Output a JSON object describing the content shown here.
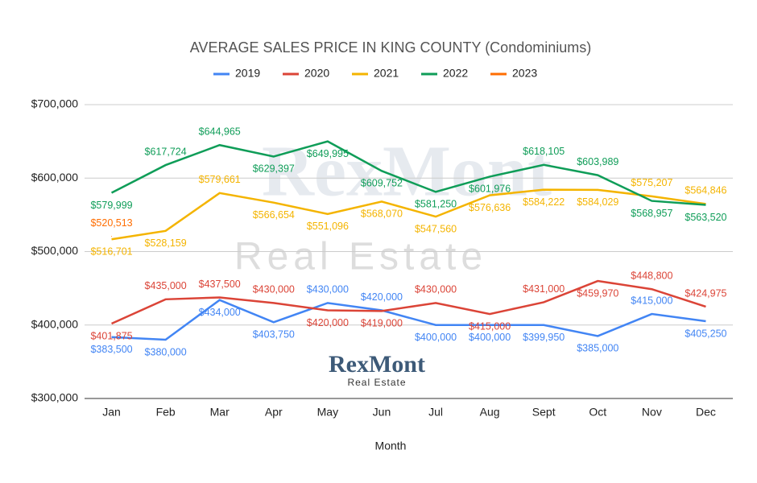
{
  "chart_data": {
    "type": "line",
    "title": "AVERAGE SALES PRICE IN KING COUNTY (Condominiums)",
    "x_label": "Month",
    "watermark": {
      "title": "RexMont",
      "subtitle": "Real Estate"
    },
    "logo": {
      "title": "RexMont",
      "subtitle": "Real Estate"
    },
    "categories": [
      "Jan",
      "Feb",
      "Mar",
      "Apr",
      "May",
      "Jun",
      "Jul",
      "Aug",
      "Sept",
      "Oct",
      "Nov",
      "Dec"
    ],
    "ylim": [
      300000,
      700000
    ],
    "yticks": [
      {
        "value": 300000,
        "label": "$300,000"
      },
      {
        "value": 400000,
        "label": "$400,000"
      },
      {
        "value": 500000,
        "label": "$500,000"
      },
      {
        "value": 600000,
        "label": "$600,000"
      },
      {
        "value": 700000,
        "label": "$700,000"
      }
    ],
    "grid": true,
    "legend": "top",
    "series": [
      {
        "name": "2019",
        "color": "#4285f4",
        "values": [
          383500,
          380000,
          434000,
          403750,
          430000,
          420000,
          400000,
          400000,
          399950,
          385000,
          415000,
          405250
        ],
        "value_labels": [
          "$383,500",
          "$380,000",
          "$434,000",
          "$403,750",
          "$430,000",
          "$420,000",
          "$400,000",
          "$400,000",
          "$399,950",
          "$385,000",
          "$415,000",
          "$405,250"
        ]
      },
      {
        "name": "2020",
        "color": "#db4437",
        "values": [
          401875,
          435000,
          437500,
          430000,
          420000,
          419000,
          430000,
          415000,
          431000,
          459970,
          448800,
          424975
        ],
        "value_labels": [
          "$401,875",
          "$435,000",
          "$437,500",
          "$430,000",
          "$420,000",
          "$419,000",
          "$430,000",
          "$415,000",
          "$431,000",
          "$459,970",
          "$448,800",
          "$424,975"
        ]
      },
      {
        "name": "2021",
        "color": "#f4b400",
        "values": [
          516701,
          528159,
          579661,
          566654,
          551096,
          568070,
          547560,
          576636,
          584222,
          584029,
          575207,
          564846
        ],
        "value_labels": [
          "$516,701",
          "$528,159",
          "$579,661",
          "$566,654",
          "$551,096",
          "$568,070",
          "$547,560",
          "$576,636",
          "$584,222",
          "$584,029",
          "$575,207",
          "$564,846"
        ]
      },
      {
        "name": "2022",
        "color": "#0f9d58",
        "values": [
          579999,
          617724,
          644965,
          629397,
          649995,
          609752,
          581250,
          601976,
          618105,
          603989,
          568957,
          563520
        ],
        "value_labels": [
          "$579,999",
          "$617,724",
          "$644,965",
          "$629,397",
          "$649,995",
          "$609,752",
          "$581,250",
          "$601,976",
          "$618,105",
          "$603,989",
          "$568,957",
          "$563,520"
        ]
      },
      {
        "name": "2023",
        "color": "#ff6d01",
        "values": [
          520513,
          null,
          null,
          null,
          null,
          null,
          null,
          null,
          null,
          null,
          null,
          null
        ],
        "value_labels": [
          "$520,513",
          null,
          null,
          null,
          null,
          null,
          null,
          null,
          null,
          null,
          null,
          null
        ]
      }
    ]
  }
}
